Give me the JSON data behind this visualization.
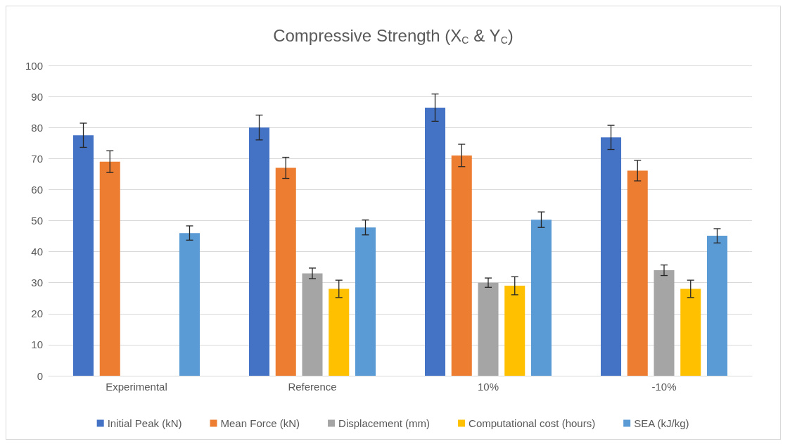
{
  "chart_data": {
    "type": "bar",
    "title": "Compressive Strength (X$_{C}$ & Y$_{C}$)",
    "categories": [
      "Experimental",
      "Reference",
      "10%",
      "-10%"
    ],
    "series": [
      {
        "name": "Initial Peak (kN)",
        "color": "#4472c4",
        "values": [
          77.5,
          80,
          86.4,
          76.8
        ],
        "errors": [
          3.9,
          4,
          4.4,
          3.9
        ]
      },
      {
        "name": "Mean Force (kN)",
        "color": "#ed7d31",
        "values": [
          69,
          67,
          71,
          66.1
        ],
        "errors": [
          3.5,
          3.4,
          3.6,
          3.3
        ]
      },
      {
        "name": "Displacement (mm)",
        "color": "#a5a5a5",
        "values": [
          null,
          33,
          30,
          34
        ],
        "errors": [
          null,
          1.7,
          1.5,
          1.7
        ]
      },
      {
        "name": "Computational cost (hours)",
        "color": "#ffc000",
        "values": [
          null,
          28,
          29,
          28
        ],
        "errors": [
          null,
          2.8,
          2.9,
          2.8
        ]
      },
      {
        "name": "SEA (kJ/kg)",
        "color": "#5b9bd5",
        "values": [
          46,
          47.8,
          50.3,
          45.1
        ],
        "errors": [
          2.3,
          2.4,
          2.5,
          2.3
        ]
      }
    ],
    "ylim": [
      0,
      100
    ],
    "yticks": [
      0,
      10,
      20,
      30,
      40,
      50,
      60,
      70,
      80,
      90,
      100
    ],
    "grid": "y",
    "legend": "bottom"
  }
}
